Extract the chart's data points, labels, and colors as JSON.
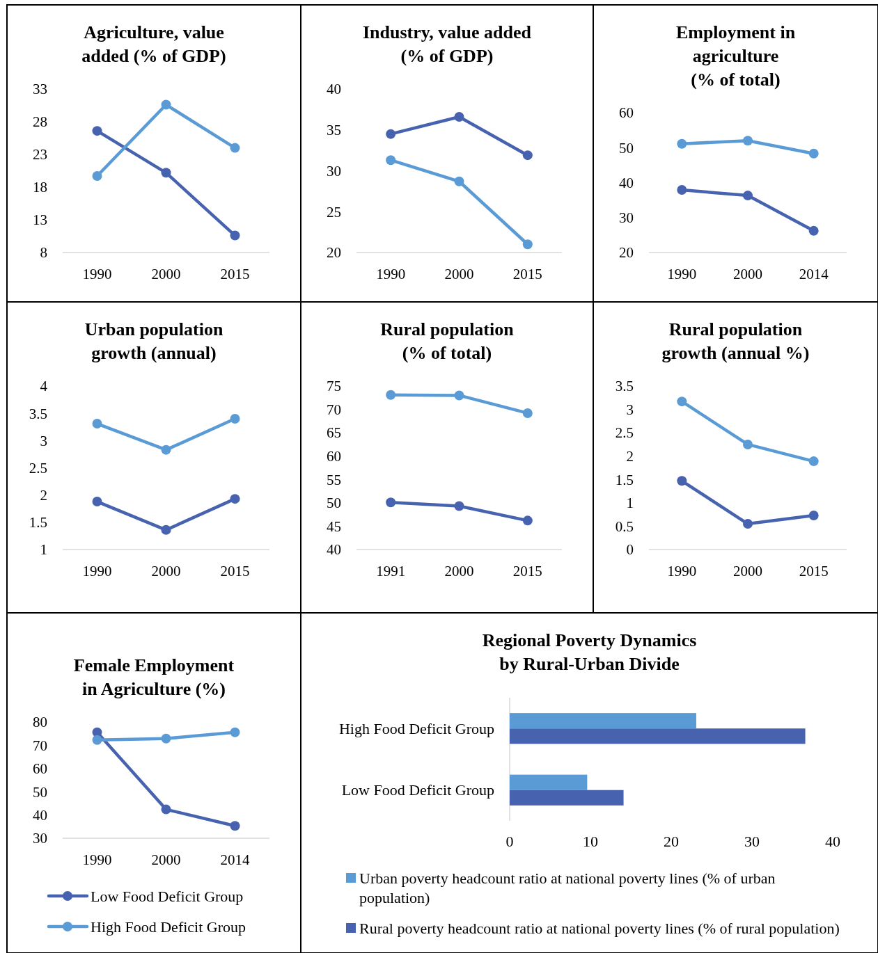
{
  "chart_data": [
    {
      "type": "line",
      "title": "Agriculture, value\nadded (% of GDP)",
      "categories": [
        "1990",
        "2000",
        "2015"
      ],
      "ylim": [
        8,
        33
      ],
      "yticks": [
        8,
        13,
        18,
        23,
        28,
        33
      ],
      "marker": "circle",
      "series": [
        {
          "color": "#4763b0",
          "values": [
            26.6,
            20.2,
            10.6
          ]
        },
        {
          "color": "#5b9bd5",
          "values": [
            19.7,
            30.6,
            24.0
          ]
        }
      ]
    },
    {
      "type": "line",
      "title": "Industry, value added\n(% of GDP)",
      "categories": [
        "1990",
        "2000",
        "2015"
      ],
      "ylim": [
        20,
        40
      ],
      "yticks": [
        20,
        25,
        30,
        35,
        40
      ],
      "marker": "circle",
      "series": [
        {
          "color": "#4763b0",
          "values": [
            34.5,
            36.6,
            31.9
          ]
        },
        {
          "color": "#5b9bd5",
          "values": [
            31.3,
            28.7,
            21.0
          ]
        }
      ]
    },
    {
      "type": "line",
      "title": "Employment in\nagriculture\n(% of total)",
      "categories": [
        "1990",
        "2000",
        "2014"
      ],
      "ylim": [
        20,
        60
      ],
      "yticks": [
        20,
        30,
        40,
        50,
        60
      ],
      "marker": "circle",
      "series": [
        {
          "color": "#4763b0",
          "values": [
            37.9,
            36.3,
            26.2
          ]
        },
        {
          "color": "#5b9bd5",
          "values": [
            51.1,
            52.0,
            48.3
          ]
        }
      ]
    },
    {
      "type": "line",
      "title": "Urban population\ngrowth (annual)",
      "categories": [
        "1990",
        "2000",
        "2015"
      ],
      "ylim": [
        1,
        4
      ],
      "yticks": [
        1,
        1.5,
        2,
        2.5,
        3,
        3.5,
        4
      ],
      "marker": "circle",
      "series": [
        {
          "color": "#4763b0",
          "values": [
            1.88,
            1.36,
            1.93
          ]
        },
        {
          "color": "#5b9bd5",
          "values": [
            3.31,
            2.83,
            3.4
          ]
        }
      ]
    },
    {
      "type": "line",
      "title": "Rural population\n(% of total)",
      "categories": [
        "1991",
        "2000",
        "2015"
      ],
      "ylim": [
        40,
        75
      ],
      "yticks": [
        40,
        45,
        50,
        55,
        60,
        65,
        70,
        75
      ],
      "marker": "circle",
      "series": [
        {
          "color": "#4763b0",
          "values": [
            50.1,
            49.3,
            46.2
          ]
        },
        {
          "color": "#5b9bd5",
          "values": [
            73.1,
            73.0,
            69.2
          ]
        }
      ]
    },
    {
      "type": "line",
      "title": "Rural population\ngrowth (annual %)",
      "categories": [
        "1990",
        "2000",
        "2015"
      ],
      "ylim": [
        0,
        3.5
      ],
      "yticks": [
        0,
        0.5,
        1,
        1.5,
        2,
        2.5,
        3,
        3.5
      ],
      "marker": "circle",
      "series": [
        {
          "color": "#4763b0",
          "values": [
            1.47,
            0.55,
            0.73
          ]
        },
        {
          "color": "#5b9bd5",
          "values": [
            3.17,
            2.25,
            1.89
          ]
        }
      ]
    },
    {
      "type": "line",
      "title": "Female Employment\nin Agriculture (%)",
      "categories": [
        "1990",
        "2000",
        "2014"
      ],
      "ylim": [
        30,
        80
      ],
      "yticks": [
        30,
        40,
        50,
        60,
        70,
        80
      ],
      "marker": "circle",
      "legend": "bottom",
      "series": [
        {
          "name": "Low Food Deficit Group",
          "color": "#4763b0",
          "values": [
            75.6,
            42.4,
            35.3
          ]
        },
        {
          "name": "High Food Deficit Group",
          "color": "#5b9bd5",
          "values": [
            72.3,
            72.9,
            75.6
          ]
        }
      ]
    },
    {
      "type": "bar",
      "orientation": "horizontal",
      "title": "Regional Poverty Dynamics\nby Rural-Urban Divide",
      "categories": [
        "High Food Deficit Group",
        "Low Food Deficit Group"
      ],
      "xlim": [
        0,
        40
      ],
      "xticks": [
        0,
        10,
        20,
        30,
        40
      ],
      "legend": "bottom",
      "series": [
        {
          "name": "Urban poverty headcount ratio at national poverty lines (% of urban population)",
          "color": "#5b9bd5",
          "values": [
            23.1,
            9.6
          ]
        },
        {
          "name": "Rural poverty headcount ratio at national poverty lines (% of rural population)",
          "color": "#4763b0",
          "values": [
            36.6,
            14.1
          ]
        }
      ]
    }
  ]
}
